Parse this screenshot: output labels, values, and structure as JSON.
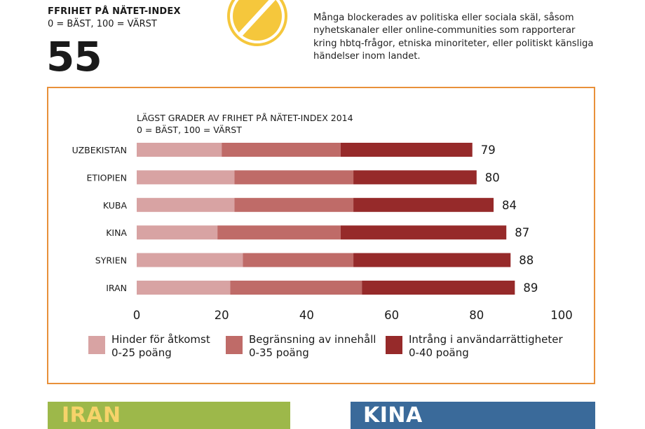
{
  "header": {
    "title": "FFRIHET PÅ NÄTET-INDEX",
    "scale": "0 = BÄST, 100 = VÄRST",
    "score": "55",
    "description": "Många blockerades av politiska eller sociala skäl, såsom nyhetskanaler eller online-communities som rapporterar kring hbtq-frågor, etniska minoriteter, eller politiskt känsliga händelser inom landet.",
    "icon": "blocked-icon"
  },
  "banners": {
    "left": "IRAN",
    "right": "KINA"
  },
  "colors": {
    "border": "#e8903a",
    "seg1": "#d8a3a3",
    "seg2": "#bf6b68",
    "seg3": "#962a2a",
    "icon": "#f5c73c",
    "banner_left": "#9db84a",
    "banner_right": "#3a6a9a"
  },
  "chart_data": {
    "type": "bar",
    "orientation": "horizontal",
    "stacked": true,
    "title": "LÄGST GRADER AV FRIHET PÅ NÄTET-INDEX 2014",
    "subtitle": "0 = BÄST, 100 = VÄRST",
    "categories": [
      "UZBEKISTAN",
      "ETIOPIEN",
      "KUBA",
      "KINA",
      "SYRIEN",
      "IRAN"
    ],
    "series": [
      {
        "name": "Hinder för åtkomst",
        "sublabel": "0-25 poäng",
        "values": [
          20,
          23,
          23,
          19,
          25,
          22
        ]
      },
      {
        "name": "Begränsning av innehåll",
        "sublabel": "0-35 poäng",
        "values": [
          28,
          28,
          28,
          29,
          26,
          31
        ]
      },
      {
        "name": "Intrång i användarrättigheter",
        "sublabel": "0-40 poäng",
        "values": [
          31,
          29,
          33,
          39,
          37,
          36
        ]
      }
    ],
    "totals": [
      79,
      80,
      84,
      87,
      88,
      89
    ],
    "xlim": [
      0,
      100
    ],
    "xticks": [
      0,
      20,
      40,
      60,
      80,
      100
    ],
    "grid": false,
    "legend": "bottom"
  }
}
